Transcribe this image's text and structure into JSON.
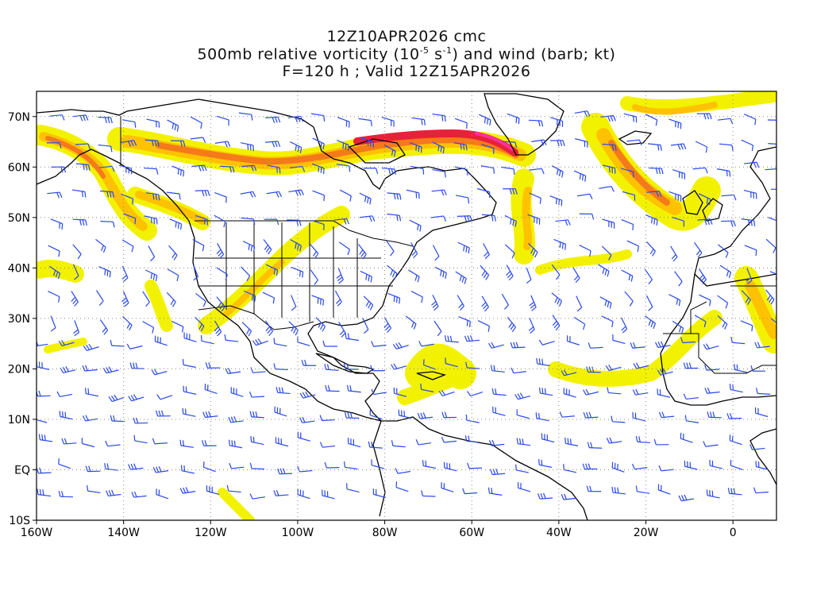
{
  "header": {
    "line1": "12Z10APR2026 cmc",
    "line2_pre": "500mb relative vorticity (10",
    "line2_exp1": "-5",
    "line2_mid": " s",
    "line2_exp2": "-1",
    "line2_post": ") and wind (barb; kt)",
    "line3": "F=120 h ; Valid 12Z15APR2026"
  },
  "map": {
    "projection": "cylindrical-equidistant",
    "lon_range": [
      -160,
      10
    ],
    "lat_range": [
      -10,
      75
    ],
    "lon_ticks": [
      "160W",
      "140W",
      "120W",
      "100W",
      "80W",
      "60W",
      "40W",
      "20W",
      "0"
    ],
    "lat_ticks": [
      "70N",
      "60N",
      "50N",
      "40N",
      "30N",
      "20N",
      "10N",
      "EQ",
      "10S"
    ],
    "grid": "dotted",
    "colors": {
      "shade_light": "#f2f200",
      "shade_mid1": "#ffc200",
      "shade_mid2": "#f57a1a",
      "shade_high": "#e8213a",
      "shade_max": "#ff3399",
      "barbs": "#2848e6",
      "coast": "#000000"
    }
  }
}
